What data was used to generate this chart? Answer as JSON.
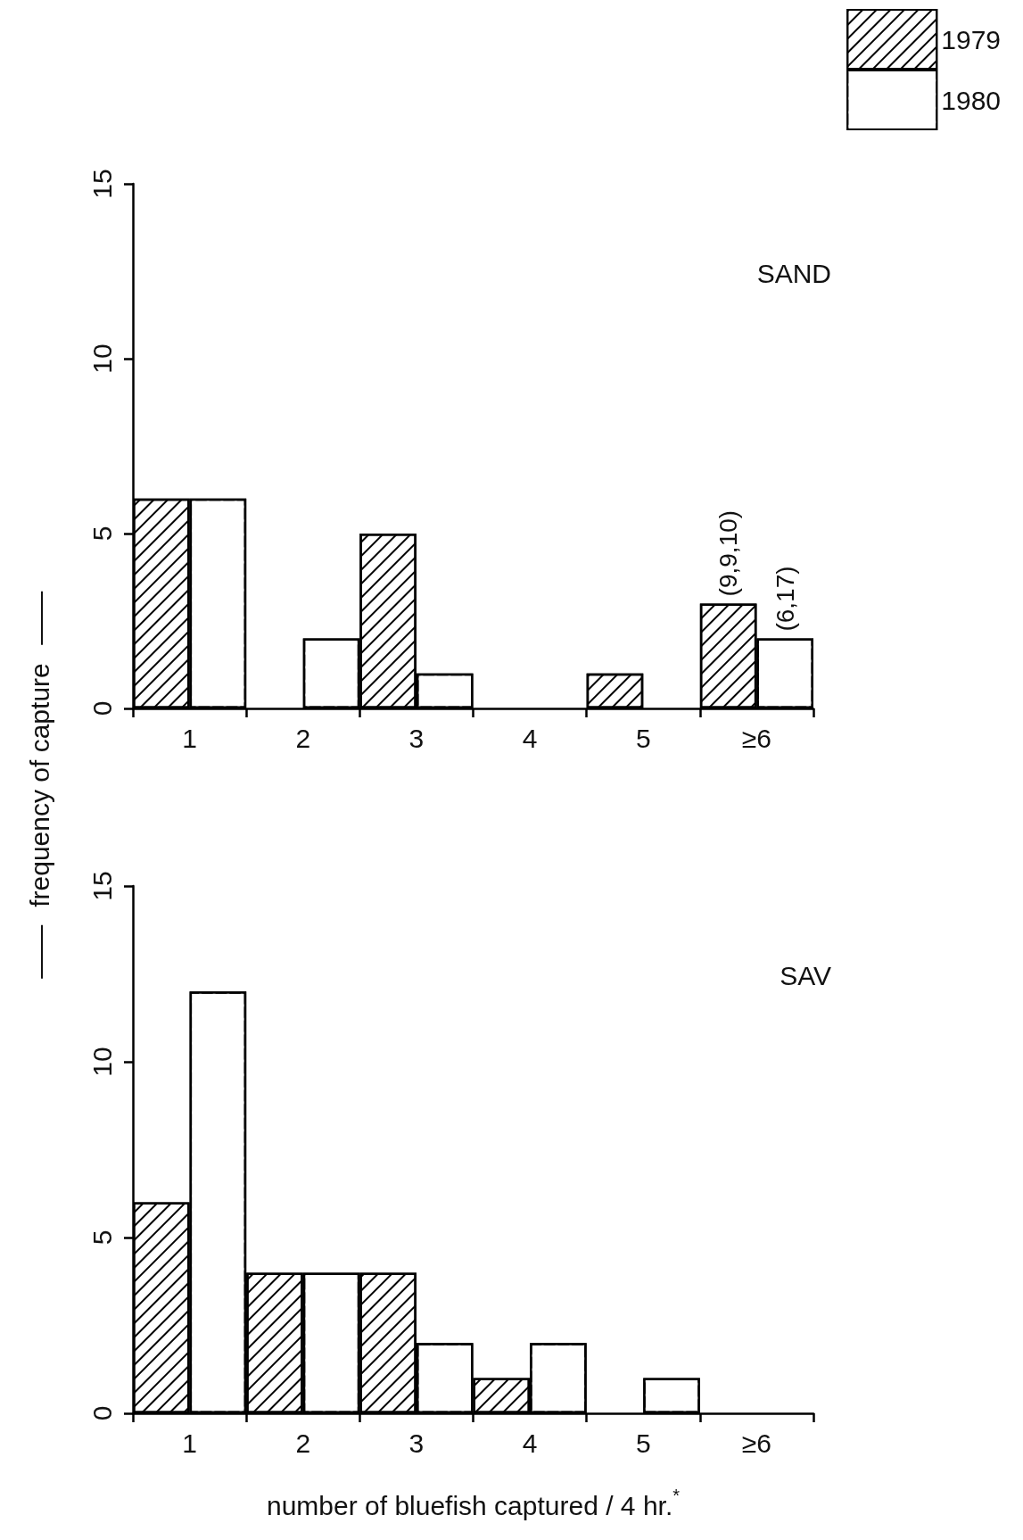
{
  "chart_data": [
    {
      "type": "bar",
      "title": "SAND",
      "ylabel": "frequency of capture",
      "categories": [
        "1",
        "2",
        "3",
        "4",
        "5",
        "≥6"
      ],
      "series": [
        {
          "name": "1979",
          "color": "#000000",
          "values": [
            6,
            0,
            5,
            0,
            1,
            3
          ]
        },
        {
          "name": "1980",
          "color": "#ffffff",
          "values": [
            6,
            2,
            1,
            0,
            0,
            2
          ]
        }
      ],
      "ylim": [
        0,
        15
      ],
      "yticks": [
        0,
        5,
        10,
        15
      ],
      "grid": false,
      "legend": "top right",
      "annotations": [
        {
          "text": "(9,9,10)",
          "x": "≥6",
          "y": 3
        },
        {
          "text": "(6,17)",
          "x": "≥6",
          "y": 2
        }
      ]
    },
    {
      "type": "bar",
      "title": "SAV",
      "xlabel": "number of bluefish captured / 4 hr.$^{*}$",
      "categories": [
        "1",
        "2",
        "3",
        "4",
        "5",
        "≥6"
      ],
      "series": [
        {
          "color": "#000000",
          "values": [
            6,
            4,
            4,
            1,
            0,
            0
          ]
        },
        {
          "color": "#ffffff",
          "values": [
            12,
            4,
            2,
            2,
            1,
            0
          ]
        }
      ],
      "ylim": [
        0,
        15
      ],
      "yticks": [
        0,
        5,
        10,
        15
      ],
      "grid": false,
      "legend": false
    }
  ]
}
